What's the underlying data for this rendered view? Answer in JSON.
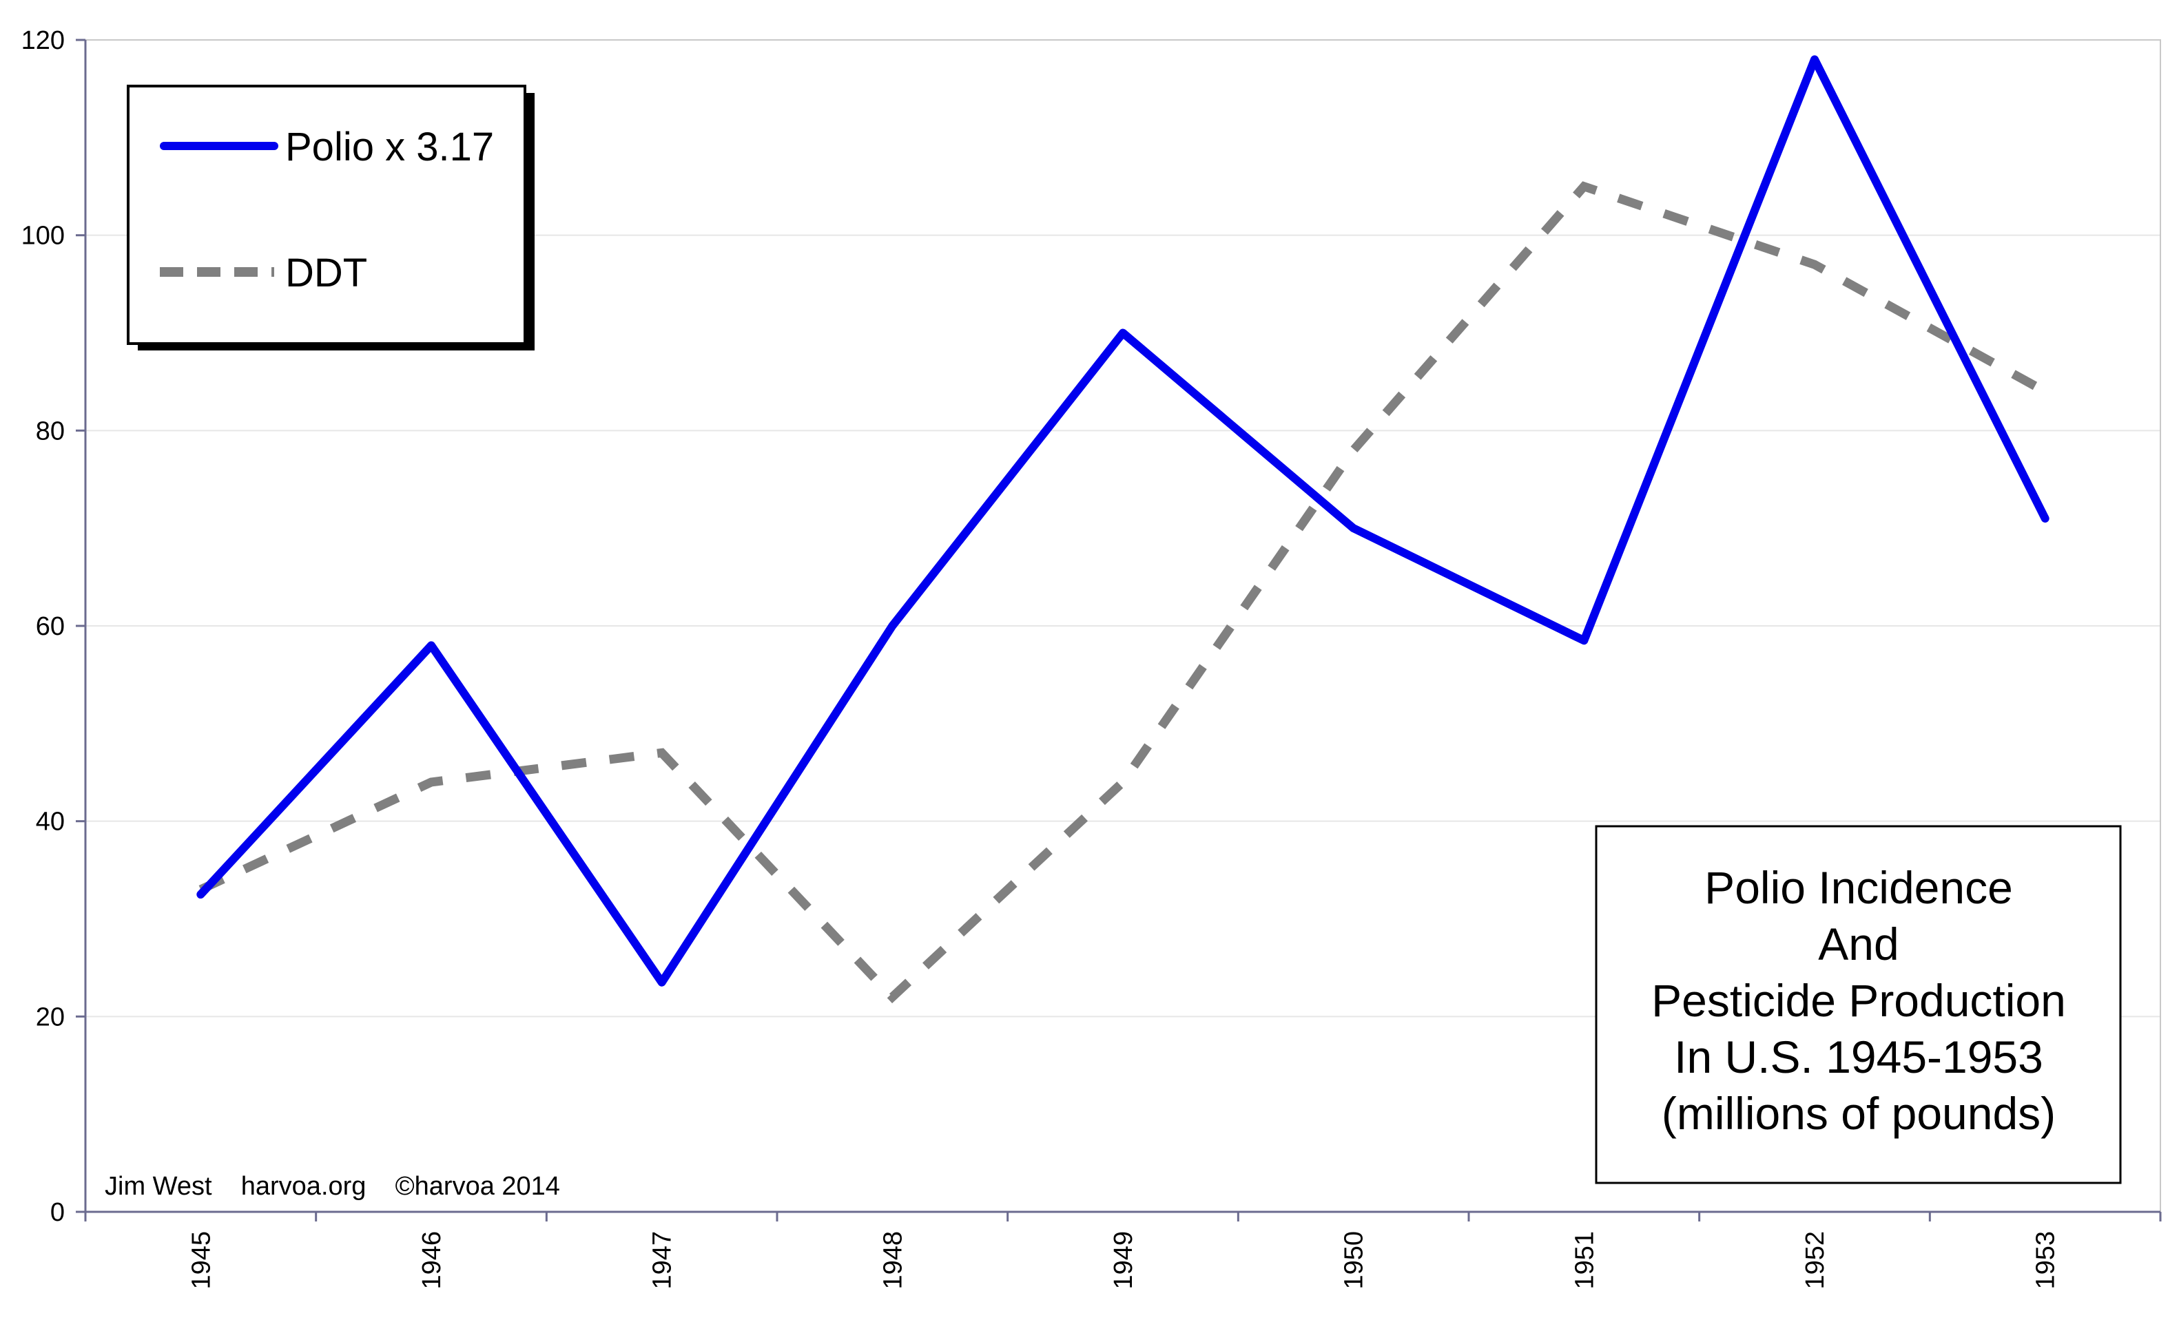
{
  "chart_data": {
    "type": "line",
    "categories": [
      "1945",
      "1946",
      "1947",
      "1948",
      "1949",
      "1950",
      "1951",
      "1952",
      "1953"
    ],
    "series": [
      {
        "name": "Polio x 3.17",
        "values": [
          32.5,
          58,
          23.5,
          60,
          90,
          70,
          58.5,
          118,
          71
        ],
        "color": "#0000ee",
        "style": "solid"
      },
      {
        "name": "DDT",
        "values": [
          33,
          44,
          47,
          22,
          44,
          78,
          105,
          97,
          84
        ],
        "color": "#808080",
        "style": "dashed"
      }
    ],
    "y_ticks": [
      "0",
      "20",
      "40",
      "60",
      "80",
      "100",
      "120"
    ],
    "ylim": [
      0,
      120
    ],
    "grid": "horizontal",
    "legend_position": "top-left",
    "title_lines": [
      "Polio Incidence",
      "And",
      "Pesticide Production",
      "In U.S. 1945-1953",
      "(millions of pounds)"
    ],
    "title_position": "bottom-right",
    "credit": "Jim West    harvoa.org    ©harvoa 2014"
  }
}
